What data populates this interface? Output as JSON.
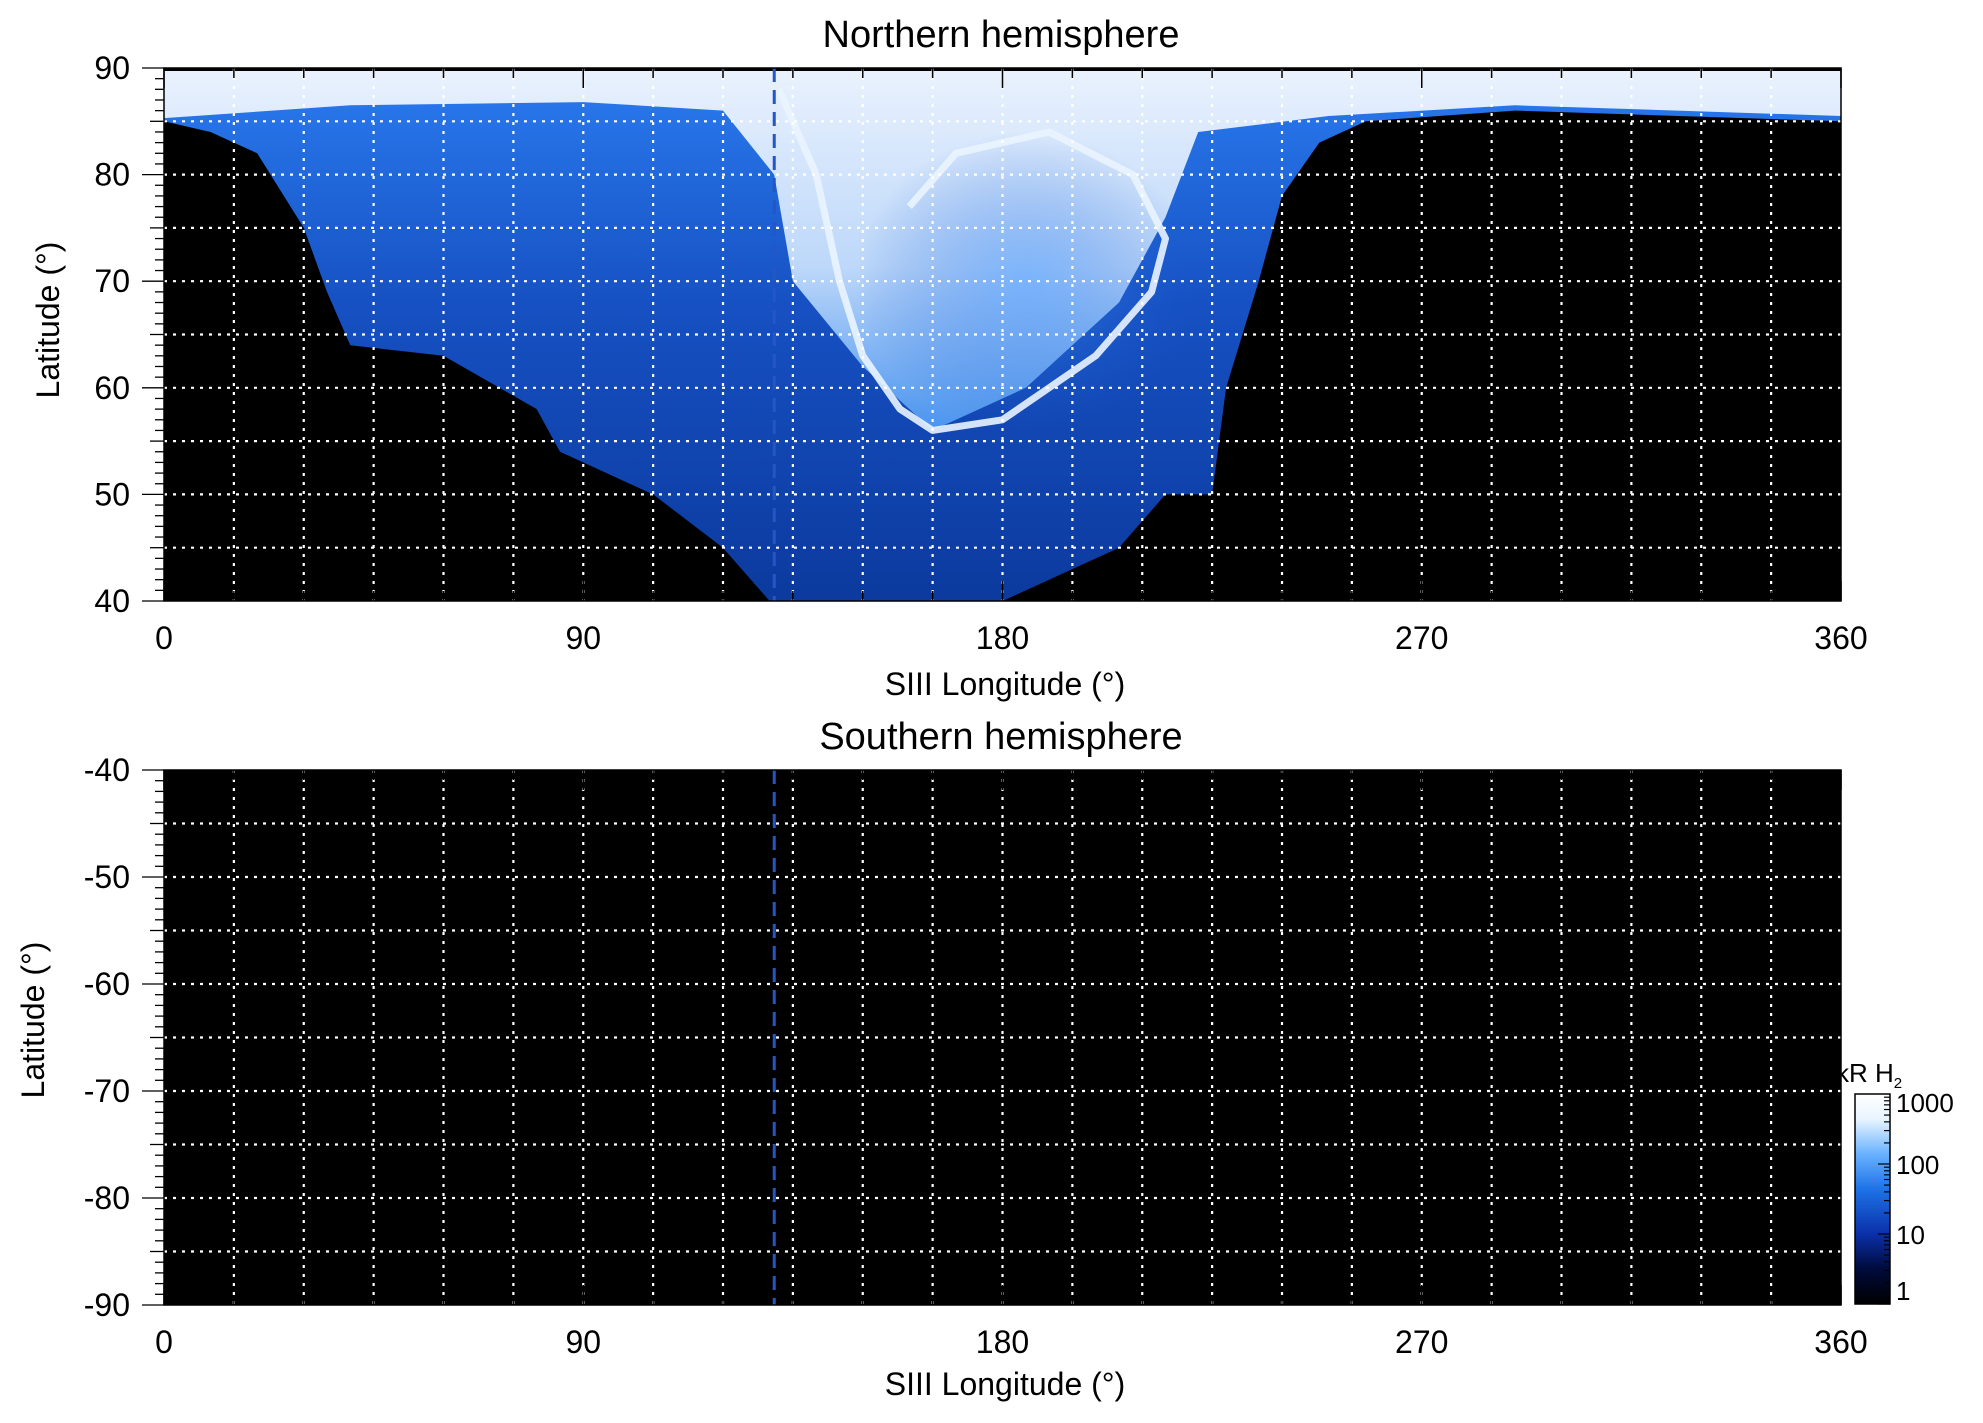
{
  "chart_data": [
    {
      "type": "heatmap",
      "title": "Northern hemisphere",
      "xlabel": "SIII Longitude (°)",
      "ylabel": "Latitude (°)",
      "xlim": [
        0,
        360
      ],
      "ylim": [
        40,
        90
      ],
      "x_ticks": [
        0,
        90,
        180,
        270,
        360
      ],
      "y_ticks": [
        40,
        50,
        60,
        70,
        80,
        90
      ],
      "grid": true,
      "reference_longitude": 131,
      "emission_boundary": [
        {
          "lon": 0,
          "lat": 85
        },
        {
          "lon": 10,
          "lat": 84
        },
        {
          "lon": 20,
          "lat": 82
        },
        {
          "lon": 30,
          "lat": 75
        },
        {
          "lon": 35,
          "lat": 69
        },
        {
          "lon": 40,
          "lat": 64
        },
        {
          "lon": 60,
          "lat": 63
        },
        {
          "lon": 80,
          "lat": 58
        },
        {
          "lon": 85,
          "lat": 54
        },
        {
          "lon": 105,
          "lat": 50
        },
        {
          "lon": 120,
          "lat": 45
        },
        {
          "lon": 130,
          "lat": 40
        },
        {
          "lon": 180,
          "lat": 40
        },
        {
          "lon": 205,
          "lat": 45
        },
        {
          "lon": 215,
          "lat": 50
        },
        {
          "lon": 225,
          "lat": 50
        },
        {
          "lon": 228,
          "lat": 60
        },
        {
          "lon": 235,
          "lat": 70
        },
        {
          "lon": 240,
          "lat": 78
        },
        {
          "lon": 248,
          "lat": 83
        },
        {
          "lon": 258,
          "lat": 85
        },
        {
          "lon": 290,
          "lat": 86
        },
        {
          "lon": 360,
          "lat": 85
        }
      ],
      "main_oval": [
        {
          "lon": 132,
          "lat": 88
        },
        {
          "lon": 140,
          "lat": 80
        },
        {
          "lon": 145,
          "lat": 70
        },
        {
          "lon": 150,
          "lat": 63
        },
        {
          "lon": 158,
          "lat": 58
        },
        {
          "lon": 165,
          "lat": 56
        },
        {
          "lon": 180,
          "lat": 57
        },
        {
          "lon": 200,
          "lat": 63
        },
        {
          "lon": 212,
          "lat": 69
        },
        {
          "lon": 215,
          "lat": 74
        },
        {
          "lon": 208,
          "lat": 80
        },
        {
          "lon": 190,
          "lat": 84
        },
        {
          "lon": 170,
          "lat": 82
        },
        {
          "lon": 160,
          "lat": 77
        }
      ]
    },
    {
      "type": "heatmap",
      "title": "Southern hemisphere",
      "xlabel": "SIII Longitude (°)",
      "ylabel": "Latitude (°)",
      "xlim": [
        0,
        360
      ],
      "ylim": [
        -90,
        -40
      ],
      "x_ticks": [
        0,
        90,
        180,
        270,
        360
      ],
      "y_ticks": [
        -40,
        -50,
        -60,
        -70,
        -80,
        -90
      ],
      "grid": true,
      "reference_longitude": 131
    }
  ],
  "colorbar": {
    "unit_text": "kR H",
    "unit_subscript": "2",
    "scale": "log",
    "range": [
      1,
      1000
    ],
    "ticks": [
      1,
      10,
      100,
      1000
    ],
    "colors": [
      "#000000",
      "#000b3d",
      "#0a2fa8",
      "#1e74e8",
      "#6db4ff",
      "#e8f4ff",
      "#ffffff"
    ]
  },
  "colors": {
    "background": "#000000",
    "emission_dim": "#0c3a9e",
    "emission_mid": "#2a7cf0",
    "emission_bright": "#ffffff",
    "reference_line": "#2456c6",
    "grid": "#ffffff"
  }
}
